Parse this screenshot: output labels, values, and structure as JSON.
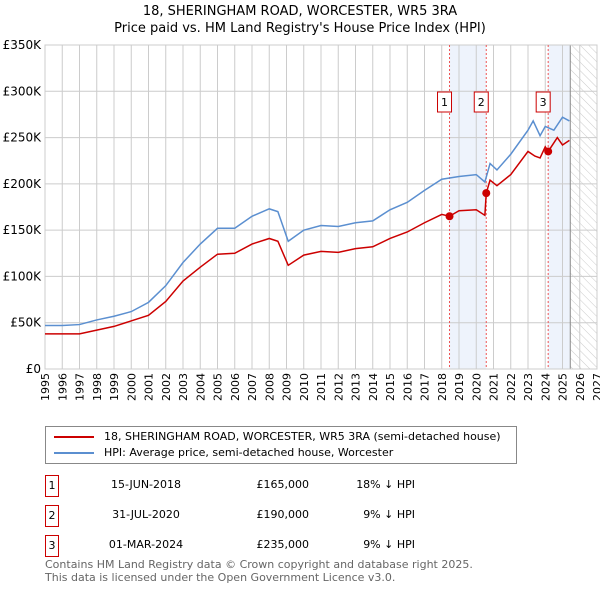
{
  "title": "18, SHERINGHAM ROAD, WORCESTER, WR5 3RA",
  "subtitle": "Price paid vs. HM Land Registry's House Price Index (HPI)",
  "chart_data": {
    "type": "line",
    "xlim": [
      1995,
      2027
    ],
    "ylim": [
      0,
      350000
    ],
    "yticks": [
      0,
      50000,
      100000,
      150000,
      200000,
      250000,
      300000,
      350000
    ],
    "ytick_labels": [
      "£0",
      "£50K",
      "£100K",
      "£150K",
      "£200K",
      "£250K",
      "£300K",
      "£350K"
    ],
    "xticks": [
      1995,
      1996,
      1997,
      1998,
      1999,
      2000,
      2001,
      2002,
      2003,
      2004,
      2005,
      2006,
      2007,
      2008,
      2009,
      2010,
      2011,
      2012,
      2013,
      2014,
      2015,
      2016,
      2017,
      2018,
      2019,
      2020,
      2021,
      2022,
      2023,
      2024,
      2025,
      2026,
      2027
    ],
    "grid": true,
    "forecast_start": 2025.45,
    "shaded_ranges": [
      [
        2018.45,
        2020.58
      ],
      [
        2024.17,
        2025.45
      ]
    ],
    "series": [
      {
        "name": "18, SHERINGHAM ROAD, WORCESTER, WR5 3RA (semi-detached house)",
        "color": "#cc0000",
        "x": [
          1995,
          1997,
          1999,
          2001,
          2002,
          2003,
          2004,
          2005,
          2006,
          2007,
          2008,
          2008.5,
          2009.1,
          2010,
          2011,
          2012,
          2013,
          2014,
          2015,
          2016,
          2017,
          2018,
          2018.45,
          2019,
          2020,
          2020.5,
          2020.58,
          2020.8,
          2021.2,
          2022,
          2023,
          2023.4,
          2023.7,
          2024,
          2024.17,
          2024.7,
          2025,
          2025.4
        ],
        "y": [
          38000,
          38000,
          46000,
          58000,
          73000,
          95000,
          110000,
          124000,
          125000,
          135000,
          141000,
          138000,
          112000,
          123000,
          127000,
          126000,
          130000,
          132000,
          141000,
          148000,
          158000,
          167000,
          165000,
          171000,
          172000,
          166000,
          190000,
          204000,
          198000,
          210000,
          235000,
          230000,
          228000,
          240000,
          235000,
          250000,
          242000,
          247000
        ]
      },
      {
        "name": "HPI: Average price, semi-detached house, Worcester",
        "color": "#5b8fd0",
        "x": [
          1995,
          1996,
          1997,
          1998,
          1999,
          2000,
          2001,
          2002,
          2003,
          2004,
          2005,
          2006,
          2007,
          2008,
          2008.5,
          2009.1,
          2010,
          2011,
          2012,
          2013,
          2014,
          2015,
          2016,
          2017,
          2018,
          2019,
          2020,
          2020.5,
          2020.8,
          2021.2,
          2022,
          2023,
          2023.3,
          2023.7,
          2024,
          2024.5,
          2025,
          2025.4
        ],
        "y": [
          47000,
          47000,
          48000,
          53000,
          57000,
          62000,
          72000,
          90000,
          115000,
          135000,
          152000,
          152000,
          165000,
          173000,
          170000,
          138000,
          150000,
          155000,
          154000,
          158000,
          160000,
          172000,
          180000,
          193000,
          205000,
          208000,
          210000,
          202000,
          222000,
          215000,
          232000,
          258000,
          268000,
          252000,
          262000,
          258000,
          272000,
          268000
        ]
      }
    ],
    "sales": [
      {
        "label": "1",
        "x": 2018.45,
        "y": 165000,
        "date": "15-JUN-2018",
        "price": "£165,000",
        "hpi": "18% ↓ HPI"
      },
      {
        "label": "2",
        "x": 2020.58,
        "y": 190000,
        "date": "31-JUL-2020",
        "price": "£190,000",
        "hpi": "9% ↓ HPI"
      },
      {
        "label": "3",
        "x": 2024.17,
        "y": 235000,
        "date": "01-MAR-2024",
        "price": "£235,000",
        "hpi": "9% ↓ HPI"
      }
    ]
  },
  "footer": [
    "Contains HM Land Registry data © Crown copyright and database right 2025.",
    "This data is licensed under the Open Government Licence v3.0."
  ]
}
